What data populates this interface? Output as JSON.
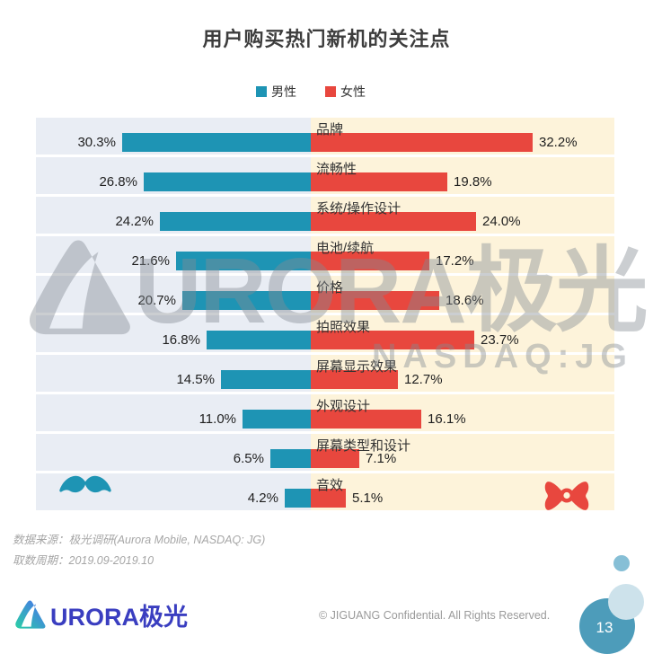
{
  "title": "用户购买热门新机的关注点",
  "legend": {
    "male": "男性",
    "female": "女性"
  },
  "chart_data": {
    "type": "bar",
    "variant": "diverging-horizontal",
    "title": "用户购买热门新机的关注点",
    "categories": [
      "品牌",
      "流畅性",
      "系统/操作设计",
      "电池/续航",
      "价格",
      "拍照效果",
      "屏幕显示效果",
      "外观设计",
      "屏幕类型和设计",
      "音效"
    ],
    "series": [
      {
        "name": "男性",
        "color": "#1e94b4",
        "direction": "left",
        "values": [
          30.3,
          26.8,
          24.2,
          21.6,
          20.7,
          16.8,
          14.5,
          11.0,
          6.5,
          4.2
        ]
      },
      {
        "name": "女性",
        "color": "#e8473e",
        "direction": "right",
        "values": [
          32.2,
          19.8,
          24.0,
          17.2,
          18.6,
          23.7,
          12.7,
          16.1,
          7.1,
          5.1
        ]
      }
    ],
    "value_suffix": "%",
    "legend_position": "top",
    "gridlines": false,
    "row_background_left": "#e9edf4",
    "row_background_right": "#fdf3da"
  },
  "watermark": {
    "brand": "URORA极光",
    "ticker": "NASDAQ:JG"
  },
  "source": {
    "line1": "数据来源：极光调研(Aurora Mobile, NASDAQ: JG)",
    "line2": "取数周期：2019.09-2019.10"
  },
  "footer": {
    "logo_text": "URORA极光",
    "copyright": "© JIGUANG Confidential. All Rights Reserved.",
    "page_number": "13"
  },
  "colors": {
    "male_bar": "#1e94b4",
    "female_bar": "#e8473e",
    "page_circle": "#4d9cba"
  }
}
